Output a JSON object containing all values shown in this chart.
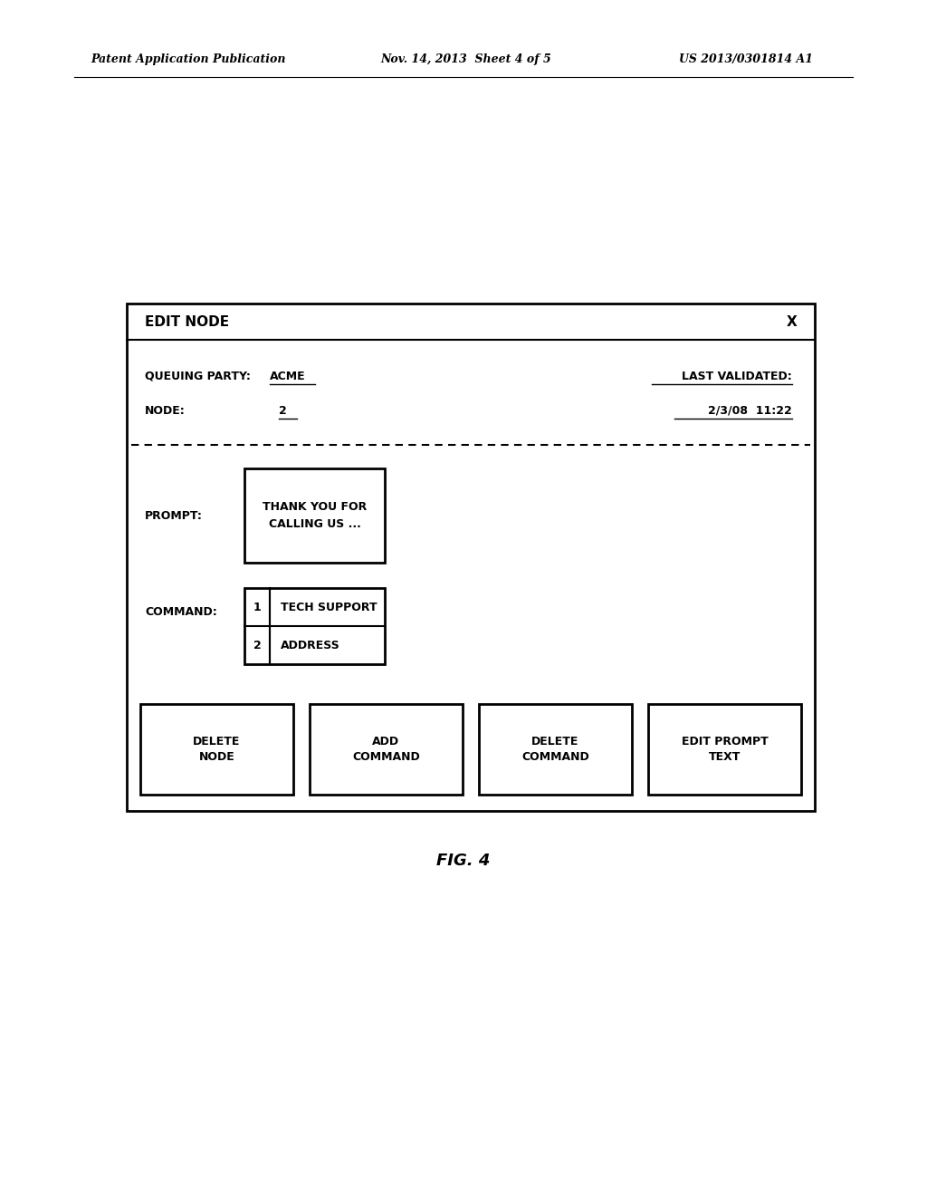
{
  "header_left": "Patent Application Publication",
  "header_mid": "Nov. 14, 2013  Sheet 4 of 5",
  "header_right": "US 2013/0301814 A1",
  "fig_label": "FIG. 4",
  "dialog_title": "EDIT NODE",
  "close_btn": "X",
  "queuing_party_label": "QUEUING PARTY:",
  "queuing_party_value": "ACME",
  "node_label": "NODE:",
  "node_value": "2",
  "last_validated_label": "LAST VALIDATED:",
  "last_validated_value": "2/3/08  11:22",
  "prompt_label": "PROMPT:",
  "prompt_text": "THANK YOU FOR\nCALLING US ...",
  "command_label": "COMMAND:",
  "commands": [
    [
      "1",
      "TECH SUPPORT"
    ],
    [
      "2",
      "ADDRESS"
    ]
  ],
  "buttons": [
    "DELETE\nNODE",
    "ADD\nCOMMAND",
    "DELETE\nCOMMAND",
    "EDIT PROMPT\nTEXT"
  ],
  "bg_color": "#ffffff",
  "text_color": "#000000"
}
